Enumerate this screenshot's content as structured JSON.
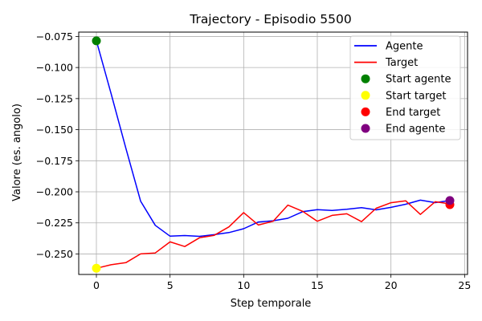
{
  "chart_data": {
    "type": "line",
    "title": "Trajectory - Episodio 5500",
    "xlabel": "Step temporale",
    "ylabel": "Valore (es. angolo)",
    "xlim": [
      -1.2,
      25.2
    ],
    "ylim": [
      -0.2665,
      -0.0715
    ],
    "xticks": [
      0,
      5,
      10,
      15,
      20,
      25
    ],
    "yticks": [
      -0.25,
      -0.225,
      -0.2,
      -0.175,
      -0.15,
      -0.125,
      -0.1,
      -0.075
    ],
    "grid": true,
    "legend_position": "top-right",
    "series": [
      {
        "name": "Agente",
        "color": "#0000ff",
        "x": [
          0,
          1,
          2,
          3,
          4,
          5,
          6,
          7,
          8,
          9,
          10,
          11,
          12,
          13,
          14,
          15,
          16,
          17,
          18,
          19,
          20,
          21,
          22,
          23,
          24
        ],
        "y": [
          -0.0785,
          -0.121,
          -0.165,
          -0.2075,
          -0.227,
          -0.2357,
          -0.2352,
          -0.2358,
          -0.2345,
          -0.2328,
          -0.2297,
          -0.2243,
          -0.2233,
          -0.2213,
          -0.216,
          -0.2143,
          -0.215,
          -0.214,
          -0.2128,
          -0.2145,
          -0.2125,
          -0.21,
          -0.2067,
          -0.2087,
          -0.207
        ]
      },
      {
        "name": "Target",
        "color": "#ff0000",
        "x": [
          0,
          1,
          2,
          3,
          4,
          5,
          6,
          7,
          8,
          9,
          10,
          11,
          12,
          13,
          14,
          15,
          16,
          17,
          18,
          19,
          20,
          21,
          22,
          23,
          24
        ],
        "y": [
          -0.2615,
          -0.2587,
          -0.257,
          -0.25,
          -0.2492,
          -0.2403,
          -0.244,
          -0.237,
          -0.235,
          -0.2282,
          -0.2167,
          -0.2267,
          -0.2237,
          -0.2107,
          -0.2157,
          -0.2237,
          -0.219,
          -0.2177,
          -0.224,
          -0.2132,
          -0.2088,
          -0.2072,
          -0.2182,
          -0.208,
          -0.2097
        ]
      }
    ],
    "markers": [
      {
        "name": "Start agente",
        "color": "#008000",
        "x": 0,
        "y": -0.0785
      },
      {
        "name": "Start target",
        "color": "#ffff00",
        "x": 0,
        "y": -0.2615
      },
      {
        "name": "End target",
        "color": "#ff0000",
        "x": 24,
        "y": -0.2103
      },
      {
        "name": "End agente",
        "color": "#800080",
        "x": 24,
        "y": -0.207
      }
    ]
  }
}
